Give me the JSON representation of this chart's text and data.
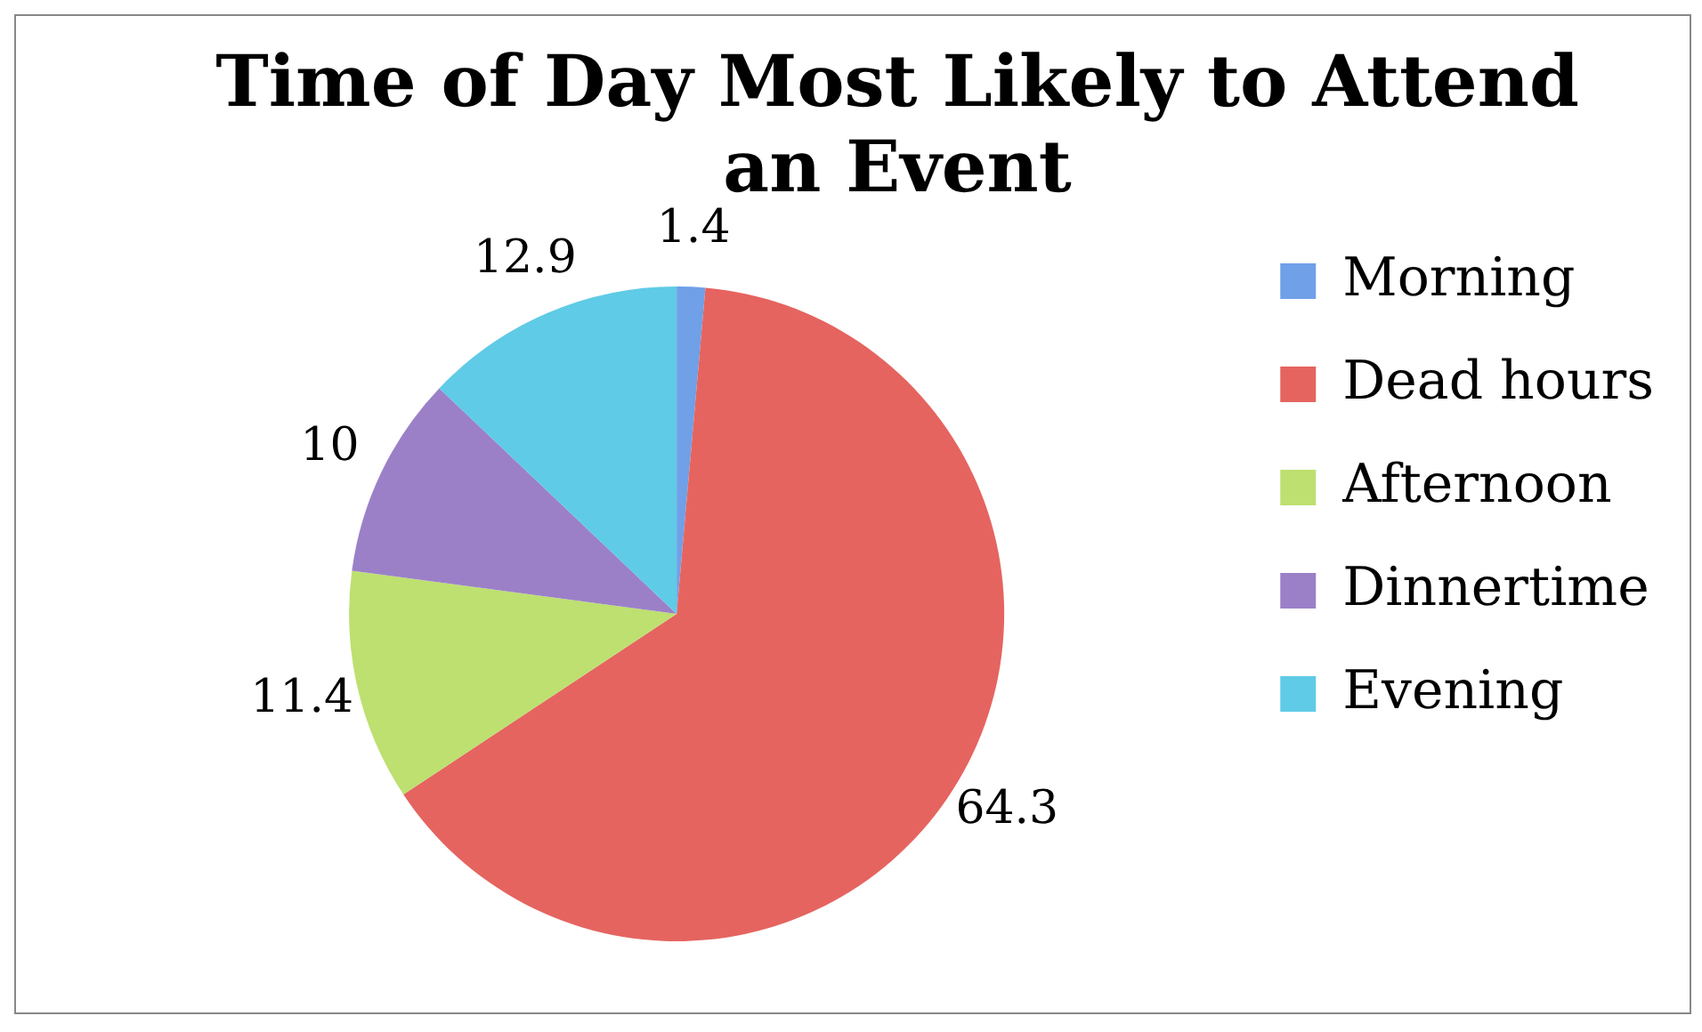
{
  "chart_data": {
    "type": "pie",
    "title": "Time of Day Most Likely to Attend an Event",
    "categories": [
      "Morning",
      "Dead hours",
      "Afternoon",
      "Dinnertime",
      "Evening"
    ],
    "values": [
      1.4,
      64.3,
      11.4,
      10,
      12.9
    ],
    "colors": [
      "#6fa0e8",
      "#e56460",
      "#bde070",
      "#9b80c8",
      "#5fcbe6"
    ],
    "data_labels": true,
    "legend": "right"
  }
}
